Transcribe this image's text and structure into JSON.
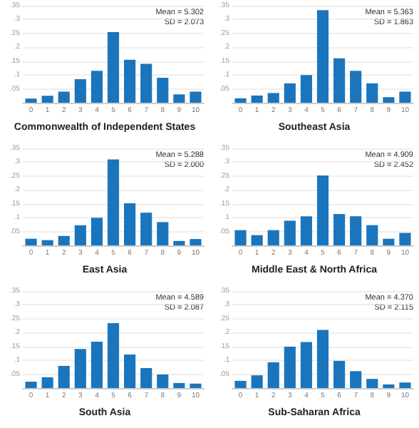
{
  "chart_data": [
    {
      "type": "bar",
      "title": "Commonwealth of Independent States",
      "annotations": [
        "Mean = 5.302",
        "SD = 2.073"
      ],
      "categories": [
        "0",
        "1",
        "2",
        "3",
        "4",
        "5",
        "6",
        "7",
        "8",
        "9",
        "10"
      ],
      "values": [
        0.015,
        0.025,
        0.04,
        0.085,
        0.115,
        0.255,
        0.155,
        0.14,
        0.09,
        0.03,
        0.04
      ],
      "color": "#1a75bc",
      "ylim": [
        0,
        0.35
      ],
      "yticks": [
        {
          "value": 0,
          "label": null
        },
        {
          "value": 0.05,
          "label": ".05"
        },
        {
          "value": 0.1,
          "label": ".1"
        },
        {
          "value": 0.15,
          "label": ".15"
        },
        {
          "value": 0.2,
          "label": ".2"
        },
        {
          "value": 0.25,
          "label": ".25"
        },
        {
          "value": 0.3,
          "label": ".3"
        },
        {
          "value": 0.35,
          "label": ".35"
        }
      ],
      "grid": "y"
    },
    {
      "type": "bar",
      "title": "Southeast Asia",
      "annotations": [
        "Mean = 5.363",
        "SD = 1.863"
      ],
      "categories": [
        "0",
        "1",
        "2",
        "3",
        "4",
        "5",
        "6",
        "7",
        "8",
        "9",
        "10"
      ],
      "values": [
        0.016,
        0.026,
        0.035,
        0.07,
        0.1,
        0.334,
        0.16,
        0.115,
        0.07,
        0.02,
        0.04
      ],
      "color": "#1a75bc",
      "ylim": [
        0,
        0.35
      ],
      "yticks": [
        {
          "value": 0,
          "label": null
        },
        {
          "value": 0.05,
          "label": ".05"
        },
        {
          "value": 0.1,
          "label": ".1"
        },
        {
          "value": 0.15,
          "label": ".15"
        },
        {
          "value": 0.2,
          "label": ".2"
        },
        {
          "value": 0.25,
          "label": ".25"
        },
        {
          "value": 0.3,
          "label": ".3"
        },
        {
          "value": 0.35,
          "label": ".35"
        }
      ],
      "grid": "y"
    },
    {
      "type": "bar",
      "title": "East Asia",
      "annotations": [
        "Mean = 5.288",
        "SD = 2.000"
      ],
      "categories": [
        "0",
        "1",
        "2",
        "3",
        "4",
        "5",
        "6",
        "7",
        "8",
        "9",
        "10"
      ],
      "values": [
        0.024,
        0.019,
        0.034,
        0.073,
        0.1,
        0.31,
        0.152,
        0.118,
        0.084,
        0.016,
        0.023
      ],
      "color": "#1a75bc",
      "ylim": [
        0,
        0.35
      ],
      "yticks": [
        {
          "value": 0,
          "label": null
        },
        {
          "value": 0.05,
          "label": ".05"
        },
        {
          "value": 0.1,
          "label": ".1"
        },
        {
          "value": 0.15,
          "label": ".15"
        },
        {
          "value": 0.2,
          "label": ".2"
        },
        {
          "value": 0.25,
          "label": ".25"
        },
        {
          "value": 0.3,
          "label": ".3"
        },
        {
          "value": 0.35,
          "label": ".35"
        }
      ],
      "grid": "y"
    },
    {
      "type": "bar",
      "title": "Middle East & North Africa",
      "annotations": [
        "Mean = 4.909",
        "SD = 2.452"
      ],
      "categories": [
        "0",
        "1",
        "2",
        "3",
        "4",
        "5",
        "6",
        "7",
        "8",
        "9",
        "10"
      ],
      "values": [
        0.055,
        0.037,
        0.055,
        0.089,
        0.105,
        0.252,
        0.113,
        0.105,
        0.073,
        0.024,
        0.045
      ],
      "color": "#1a75bc",
      "ylim": [
        0,
        0.35
      ],
      "yticks": [
        {
          "value": 0,
          "label": null
        },
        {
          "value": 0.05,
          "label": ".05"
        },
        {
          "value": 0.1,
          "label": ".1"
        },
        {
          "value": 0.15,
          "label": ".15"
        },
        {
          "value": 0.2,
          "label": ".2"
        },
        {
          "value": 0.25,
          "label": ".25"
        },
        {
          "value": 0.3,
          "label": ".3"
        },
        {
          "value": 0.35,
          "label": ".35"
        }
      ],
      "grid": "y"
    },
    {
      "type": "bar",
      "title": "South Asia",
      "annotations": [
        "Mean = 4.589",
        "SD = 2.087"
      ],
      "categories": [
        "0",
        "1",
        "2",
        "3",
        "4",
        "5",
        "6",
        "7",
        "8",
        "9",
        "10"
      ],
      "values": [
        0.023,
        0.039,
        0.08,
        0.141,
        0.167,
        0.234,
        0.121,
        0.072,
        0.049,
        0.018,
        0.016
      ],
      "color": "#1a75bc",
      "ylim": [
        0,
        0.35
      ],
      "yticks": [
        {
          "value": 0,
          "label": null
        },
        {
          "value": 0.05,
          "label": ".05"
        },
        {
          "value": 0.1,
          "label": ".1"
        },
        {
          "value": 0.15,
          "label": ".15"
        },
        {
          "value": 0.2,
          "label": ".2"
        },
        {
          "value": 0.25,
          "label": ".25"
        },
        {
          "value": 0.3,
          "label": ".3"
        },
        {
          "value": 0.35,
          "label": ".35"
        }
      ],
      "grid": "y"
    },
    {
      "type": "bar",
      "title": "Sub-Saharan Africa",
      "annotations": [
        "Mean = 4.370",
        "SD = 2.115"
      ],
      "categories": [
        "0",
        "1",
        "2",
        "3",
        "4",
        "5",
        "6",
        "7",
        "8",
        "9",
        "10"
      ],
      "values": [
        0.026,
        0.046,
        0.093,
        0.149,
        0.166,
        0.21,
        0.098,
        0.061,
        0.033,
        0.013,
        0.02
      ],
      "color": "#1a75bc",
      "ylim": [
        0,
        0.35
      ],
      "yticks": [
        {
          "value": 0,
          "label": null
        },
        {
          "value": 0.05,
          "label": ".05"
        },
        {
          "value": 0.1,
          "label": ".1"
        },
        {
          "value": 0.15,
          "label": ".15"
        },
        {
          "value": 0.2,
          "label": ".2"
        },
        {
          "value": 0.25,
          "label": ".25"
        },
        {
          "value": 0.3,
          "label": ".3"
        },
        {
          "value": 0.35,
          "label": ".35"
        }
      ],
      "grid": "y"
    }
  ]
}
